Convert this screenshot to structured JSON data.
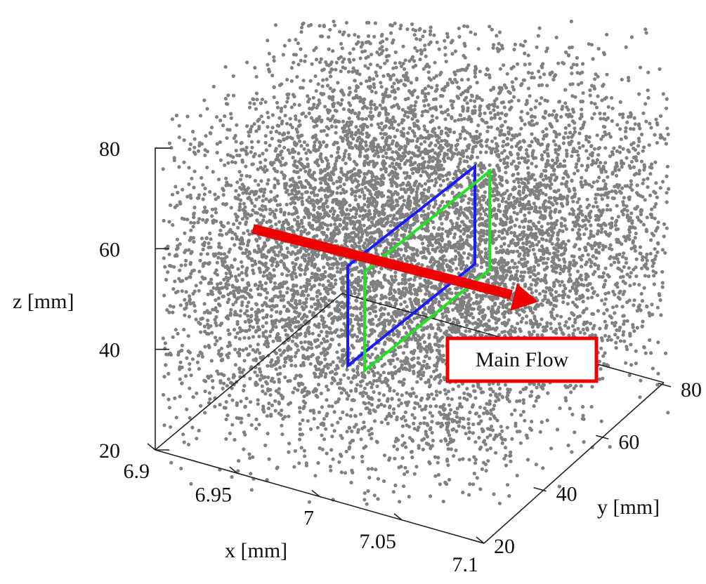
{
  "chart_data": {
    "type": "scatter",
    "subtype": "3d-scatter",
    "title": "",
    "xlabel": "x [mm]",
    "ylabel": "y [mm]",
    "zlabel": "z [mm]",
    "xlim": [
      6.9,
      7.1
    ],
    "ylim": [
      20,
      80
    ],
    "zlim": [
      20,
      80
    ],
    "x_ticks": [
      "6.9",
      "6.95",
      "7",
      "7.05",
      "7.1"
    ],
    "y_ticks": [
      "20",
      "40",
      "60",
      "80"
    ],
    "z_ticks": [
      "20",
      "40",
      "60",
      "80"
    ],
    "point_color": "#808080",
    "point_count_approx": 9000,
    "grid": false,
    "planes": [
      {
        "color": "#1a1aff",
        "orientation": "constant-x"
      },
      {
        "color": "#22e022",
        "orientation": "constant-x"
      }
    ],
    "annotation": {
      "text": "Main Flow",
      "box_color": "#ee0000",
      "arrow_color": "#ee0000"
    }
  }
}
